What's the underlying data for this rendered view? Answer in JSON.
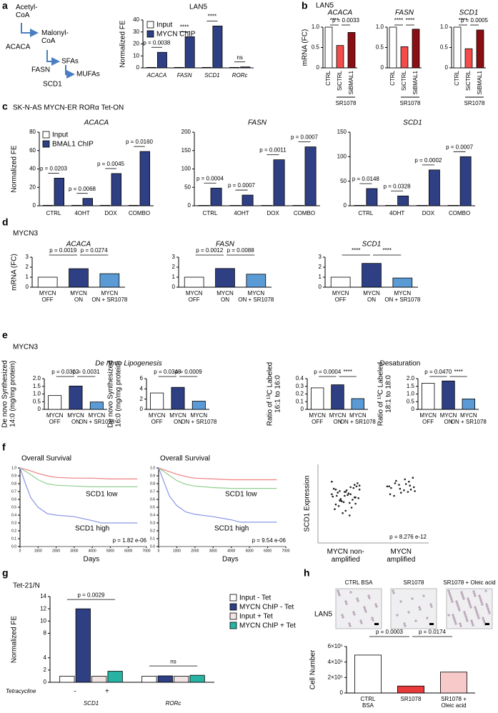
{
  "panels": [
    {
      "letter": "a"
    },
    {
      "letter": "b",
      "header": "LAN5"
    },
    {
      "letter": "c",
      "header": "SK-N-AS MYCN-ER RORα Tet-ON"
    },
    {
      "letter": "d",
      "header": "MYCN3"
    },
    {
      "letter": "e",
      "header": "MYCN3",
      "subheaders": [
        "De novo Lipogenesis",
        "Desaturation"
      ]
    },
    {
      "letter": "f"
    },
    {
      "letter": "g",
      "header": "Tet-21/N"
    },
    {
      "letter": "h",
      "header": "LAN5",
      "images": [
        "CTRL BSA",
        "SR1078",
        "SR1078 + Oleic acid"
      ]
    }
  ],
  "pathway": {
    "metabolites": [
      "Acetyl-\nCoA",
      "Malonyl-\nCoA",
      "SFAs",
      "MUFAs"
    ],
    "enzymes": [
      "ACACA",
      "FASN",
      "SCD1"
    ]
  },
  "chart_data": [
    {
      "type": "bar",
      "title": "LAN5",
      "ylabel": "Normalized FE",
      "categories": [
        "ACACA",
        "FASN",
        "SCD1",
        "RORc"
      ],
      "series": [
        {
          "name": "Input",
          "color": "#ffffff",
          "values": [
            0.4,
            0.4,
            0.4,
            0.4
          ]
        },
        {
          "name": "MYCN ChIP",
          "color": "#2e3f83",
          "values": [
            13,
            26,
            35,
            0.8
          ]
        }
      ],
      "ylim": [
        0,
        40
      ],
      "yticks": [
        0,
        10,
        20,
        30,
        40
      ],
      "annotations": [
        "p = 0.0038",
        "****",
        "****",
        "ns"
      ]
    },
    {
      "type": "bar",
      "title": "ACACA",
      "ylabel": "mRNA (FC)",
      "categories": [
        "CTRL",
        "SiCTRL",
        "SiBMAL1"
      ],
      "values": [
        1,
        0.55,
        0.87
      ],
      "colors": [
        "#ffffff",
        "#f44b4b",
        "#8b0e12"
      ],
      "ylim": [
        0,
        1
      ],
      "yticks": [
        0,
        0.5,
        {
          "value": 1,
          "label": "1.0"
        }
      ],
      "annotations": [
        "****",
        "p = 0.0033"
      ],
      "group_label": "SR1078"
    },
    {
      "type": "bar",
      "title": "FASN",
      "categories": [
        "CTRL",
        "SiCTRL",
        "SiBMAL1"
      ],
      "values": [
        1,
        0.52,
        0.95
      ],
      "colors": [
        "#ffffff",
        "#f44b4b",
        "#8b0e12"
      ],
      "ylim": [
        0,
        1
      ],
      "yticks": [
        0,
        0.5,
        {
          "value": 1,
          "label": "1.0"
        }
      ],
      "annotations": [
        "****",
        "****"
      ],
      "group_label": "SR1078"
    },
    {
      "type": "bar",
      "title": "SCD1",
      "categories": [
        "CTRL",
        "SiCTRL",
        "SiBMAL1"
      ],
      "values": [
        1,
        0.47,
        0.93
      ],
      "colors": [
        "#ffffff",
        "#f44b4b",
        "#8b0e12"
      ],
      "ylim": [
        0,
        1
      ],
      "yticks": [
        0,
        0.5,
        {
          "value": 1,
          "label": "1.0"
        }
      ],
      "annotations": [
        "****",
        "p = 0.0005"
      ],
      "group_label": "SR1078"
    },
    {
      "type": "bar",
      "title": "ACACA",
      "ylabel": "Normalized FE",
      "categories": [
        "CTRL",
        "4OHT",
        "DOX",
        "COMBO"
      ],
      "series": [
        {
          "name": "Input",
          "color": "#ffffff",
          "values": [
            0.5,
            0.5,
            0.5,
            0.5
          ]
        },
        {
          "name": "BMAL1 ChIP",
          "color": "#2e3f83",
          "values": [
            30,
            8,
            35,
            59
          ]
        }
      ],
      "ylim": [
        0,
        80
      ],
      "yticks": [
        0,
        20,
        40,
        60,
        80
      ],
      "annotations": [
        "p = 0.0203",
        "p = 0.0068",
        "p = 0.0045",
        "p = 0.0160"
      ]
    },
    {
      "type": "bar",
      "title": "FASN",
      "categories": [
        "CTRL",
        "4OHT",
        "DOX",
        "COMBO"
      ],
      "series": [
        {
          "color": "#ffffff",
          "values": [
            1,
            1,
            1,
            1
          ]
        },
        {
          "color": "#2e3f83",
          "values": [
            48,
            29,
            125,
            160
          ]
        }
      ],
      "ylim": [
        0,
        200
      ],
      "yticks": [
        0,
        50,
        100,
        150,
        200
      ],
      "annotations": [
        "p = 0.0004",
        "p = 0.0007",
        "p = 0.0011",
        "p = 0.0007"
      ]
    },
    {
      "type": "bar",
      "title": "SCD1",
      "categories": [
        "CTRL",
        "4OHT",
        "DOX",
        "COMBO"
      ],
      "series": [
        {
          "color": "#ffffff",
          "values": [
            0.8,
            0.8,
            0.8,
            0.8
          ]
        },
        {
          "color": "#2e3f83",
          "values": [
            35,
            20,
            73,
            100
          ]
        }
      ],
      "ylim": [
        0,
        150
      ],
      "yticks": [
        0,
        50,
        100,
        150
      ],
      "annotations": [
        "p = 0.0148",
        "p = 0.0328",
        "p = 0.0002",
        "p = 0.0007"
      ]
    },
    {
      "type": "bar",
      "title": "ACACA",
      "ylabel": "mRNA (FC)",
      "categories": [
        "MYCN\nOFF",
        "MYCN\nON",
        "MYCN\nON + SR1078"
      ],
      "values": [
        1,
        1.85,
        1.35
      ],
      "colors": [
        "#ffffff",
        "#2e3f83",
        "#5b9bd5"
      ],
      "ylim": [
        0,
        3
      ],
      "yticks": [
        0,
        1,
        2,
        3
      ],
      "annotations": [
        "p = 0.0019",
        "p = 0.0274"
      ]
    },
    {
      "type": "bar",
      "title": "FASN",
      "categories": [
        "MYCN\nOFF",
        "MYCN\nON",
        "MYCN\nON + SR1078"
      ],
      "values": [
        1,
        1.87,
        1.3
      ],
      "colors": [
        "#ffffff",
        "#2e3f83",
        "#5b9bd5"
      ],
      "ylim": [
        0,
        3
      ],
      "yticks": [
        0,
        1,
        2,
        3
      ],
      "annotations": [
        "p = 0.0012",
        "p = 0.0088"
      ]
    },
    {
      "type": "bar",
      "title": "SCD1",
      "categories": [
        "MYCN\nOFF",
        "MYCN\nON",
        "MYCN\nON + SR1078"
      ],
      "values": [
        1,
        2.38,
        0.92
      ],
      "colors": [
        "#ffffff",
        "#2e3f83",
        "#5b9bd5"
      ],
      "ylim": [
        0,
        3
      ],
      "yticks": [
        0,
        1,
        2,
        3
      ],
      "annotations": [
        "****",
        "****"
      ]
    },
    {
      "type": "bar",
      "ylabel": "De novo Synthesized\n14:0 (mg/mg protein)",
      "categories": [
        "MYCN\nOFF",
        "MYCN\nON",
        "MYCN\nON + SR1078"
      ],
      "values": [
        0.9,
        1.52,
        0.48
      ],
      "colors": [
        "#ffffff",
        "#2e3f83",
        "#5b9bd5"
      ],
      "ylim": [
        0,
        2
      ],
      "yticks": [
        0,
        0.5,
        {
          "value": 1,
          "label": "1.0"
        },
        1.5,
        {
          "value": 2,
          "label": "2.0"
        }
      ],
      "annotations": [
        "p = 0.0302",
        "p = 0.0031"
      ]
    },
    {
      "type": "bar",
      "ylabel": "De novo Synthesized\n16:0 (mg/mg protein)",
      "categories": [
        "MYCN\nOFF",
        "MYCN\nON",
        "MYCN\nON + SR1078"
      ],
      "values": [
        3.2,
        4.3,
        1.6
      ],
      "colors": [
        "#ffffff",
        "#2e3f83",
        "#5b9bd5"
      ],
      "ylim": [
        0,
        6
      ],
      "yticks": [
        0,
        2,
        4,
        6
      ],
      "annotations": [
        "p = 0.0348",
        "p = 0.0009"
      ]
    },
    {
      "type": "bar",
      "ylabel": "Ratio of ¹³C Labeled\n16:1 to 16:0",
      "categories": [
        "MYCN\nOFF",
        "MYCN\nON",
        "MYCN\nON + SR1078"
      ],
      "values": [
        0.28,
        0.32,
        0.14
      ],
      "colors": [
        "#ffffff",
        "#2e3f83",
        "#5b9bd5"
      ],
      "ylim": [
        0,
        0.4
      ],
      "yticks": [
        0,
        0.1,
        0.2,
        0.3,
        0.4
      ],
      "annotations": [
        "p = 0.0004",
        "****"
      ]
    },
    {
      "type": "bar",
      "ylabel": "Ratio of ¹³C Labeled\n18:1 to 18:0",
      "categories": [
        "MYCN\nOFF",
        "MYCN\nON",
        "MYCN\nON + SR1078"
      ],
      "values": [
        1.7,
        1.85,
        0.68
      ],
      "colors": [
        "#ffffff",
        "#2e3f83",
        "#5b9bd5"
      ],
      "ylim": [
        0,
        2
      ],
      "yticks": [
        0,
        0.5,
        {
          "value": 1,
          "label": "1.0"
        },
        1.5,
        {
          "value": 2,
          "label": "2.0"
        }
      ],
      "annotations": [
        "p = 0.0470",
        "****"
      ]
    },
    {
      "type": "line",
      "title": "Overall Survival",
      "xlabel": "Days",
      "xlim": [
        0,
        7000
      ],
      "xticks": [
        0,
        1000,
        2000,
        3000,
        4000,
        5000,
        6000,
        7000
      ],
      "ylim": [
        0,
        1
      ],
      "yticks": [
        {
          "value": 0,
          "label": "0.0"
        },
        0.1,
        0.2,
        0.3,
        0.4,
        0.5,
        0.6,
        0.7,
        0.8,
        0.9,
        {
          "value": 1,
          "label": "1.0"
        }
      ],
      "series": [
        {
          "color": "#f08080",
          "x": [
            0,
            500,
            1000,
            1500,
            2000,
            3000,
            4000,
            5000,
            6000,
            6500
          ],
          "values": [
            1,
            0.97,
            0.93,
            0.9,
            0.88,
            0.87,
            0.87,
            0.86,
            0.86,
            0.86
          ]
        },
        {
          "color": "#8fcf8f",
          "x": [
            0,
            500,
            1000,
            1500,
            2000,
            3000,
            4000,
            5000,
            6000,
            6500
          ],
          "values": [
            1,
            0.93,
            0.85,
            0.8,
            0.78,
            0.77,
            0.76,
            0.76,
            0.76,
            0.76
          ]
        },
        {
          "color": "#8a96e6",
          "x": [
            0,
            300,
            600,
            1000,
            1500,
            2000,
            3000,
            4000,
            4500,
            6500
          ],
          "values": [
            1,
            0.8,
            0.62,
            0.5,
            0.42,
            0.4,
            0.38,
            0.33,
            0.3,
            0.3
          ]
        }
      ],
      "annotations": [
        "SCD1 low",
        "SCD1 high",
        "p = 1.82 e-06"
      ]
    },
    {
      "type": "line",
      "title": "Overall Survival",
      "xlabel": "Days",
      "xlim": [
        0,
        7000
      ],
      "xticks": [
        0,
        1000,
        2000,
        3000,
        4000,
        5000,
        6000,
        7000
      ],
      "ylim": [
        0,
        1
      ],
      "yticks": [
        {
          "value": 0,
          "label": "0.0"
        },
        0.1,
        0.2,
        0.3,
        0.4,
        0.5,
        0.6,
        0.7,
        0.8,
        0.9,
        {
          "value": 1,
          "label": "1.0"
        }
      ],
      "series": [
        {
          "color": "#f08080",
          "x": [
            0,
            500,
            1000,
            1500,
            2000,
            3000,
            4000,
            5000,
            6000,
            6500
          ],
          "values": [
            1,
            0.96,
            0.92,
            0.89,
            0.87,
            0.86,
            0.85,
            0.85,
            0.85,
            0.85
          ]
        },
        {
          "color": "#8fcf8f",
          "x": [
            0,
            500,
            1000,
            1500,
            2000,
            3000,
            4000,
            5000,
            6000,
            6500
          ],
          "values": [
            1,
            0.92,
            0.84,
            0.79,
            0.77,
            0.75,
            0.74,
            0.74,
            0.74,
            0.74
          ]
        },
        {
          "color": "#8a96e6",
          "x": [
            0,
            300,
            600,
            1000,
            1500,
            2000,
            3000,
            4000,
            4500,
            6500
          ],
          "values": [
            1,
            0.82,
            0.64,
            0.52,
            0.44,
            0.41,
            0.38,
            0.34,
            0.31,
            0.31
          ]
        }
      ],
      "annotations": [
        "SCD1 low",
        "SCD1 high",
        "p = 9.54 e-06"
      ]
    },
    {
      "type": "scatter",
      "ylabel": "SCD1 Expression",
      "categories": [
        "MYCN non-\namplified",
        "MYCN\namplified"
      ],
      "ylim": [
        0,
        10
      ],
      "series": [
        {
          "color": "#222222",
          "values": [
            6.2,
            5.8,
            7.1,
            6.5,
            5.4,
            4.9,
            6.8,
            7.4,
            5.1,
            6.0,
            6.6,
            4.3,
            5.7,
            7.0,
            6.3,
            5.2,
            4.7,
            6.9,
            7.6,
            5.5,
            6.1,
            3.8,
            6.4,
            5.9,
            7.2,
            4.5,
            6.7,
            5.3,
            6.0,
            7.8,
            5.0,
            6.2,
            4.1,
            5.6,
            6.8,
            7.3,
            5.8,
            3.5,
            6.5,
            5.4
          ]
        },
        {
          "color": "#222222",
          "values": [
            7.2,
            6.8,
            7.5,
            6.4,
            7.9,
            7.0,
            6.6,
            7.3,
            8.1,
            6.9,
            7.6,
            6.2,
            7.1,
            7.8,
            6.7,
            7.4,
            6.0,
            7.2,
            8.3,
            6.5
          ]
        }
      ],
      "annotations": [
        "p = 8.276 e-12"
      ]
    },
    {
      "type": "bar",
      "ylabel": "Normalized FE",
      "categories": [
        "SCD1",
        "RORc"
      ],
      "series": [
        {
          "name": "Input - Tet",
          "color": "#ffffff",
          "values": [
            1,
            1
          ]
        },
        {
          "name": "MYCN ChIP - Tet",
          "color": "#2e3f83",
          "values": [
            12,
            1.05
          ]
        },
        {
          "name": "Input + Tet",
          "color": "#f1e4e4",
          "values": [
            1,
            1
          ]
        },
        {
          "name": "MYCN ChIP + Tet",
          "color": "#26b3a3",
          "values": [
            1.8,
            1.15
          ]
        }
      ],
      "ylim": [
        0,
        14
      ],
      "yticks": [
        0,
        2,
        4,
        8,
        10,
        12,
        14
      ],
      "annotations": [
        "p = 0.0029",
        "ns"
      ],
      "tetracycline": {
        "label": "Tetracycline",
        "marks": [
          "-",
          "+"
        ]
      }
    },
    {
      "type": "bar",
      "ylabel": "Cell Number",
      "categories": [
        "CTRL\nBSA",
        "SR1078",
        "SR1078 +\nOleic acid"
      ],
      "values": [
        490000,
        90000,
        270000
      ],
      "colors": [
        "#ffffff",
        "#e83a3a",
        "#f8c9c9"
      ],
      "ylim": [
        0,
        600000
      ],
      "yticks": [
        0,
        {
          "value": 200000,
          "label": "2×10⁵"
        },
        {
          "value": 400000,
          "label": "4×10⁵"
        },
        {
          "value": 600000,
          "label": "6×10⁵"
        }
      ],
      "annotations": [
        "p = 0.0003",
        "p = 0.0174"
      ]
    }
  ]
}
